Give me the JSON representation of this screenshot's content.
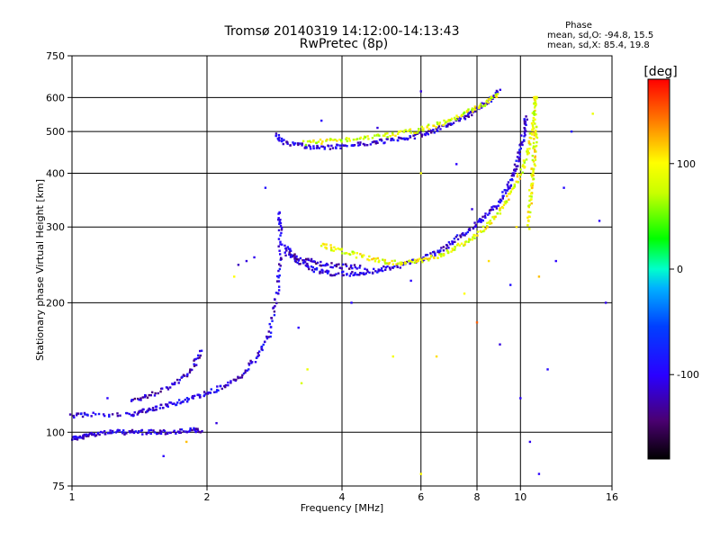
{
  "chart_data": {
    "type": "scatter",
    "title": "Tromsø 20140319 14:12:00-14:13:43",
    "subtitle": "RwPretec (8p)",
    "xlabel": "Frequency [MHz]",
    "ylabel": "Stationary phase Virtual Height [km]",
    "x_scale": "log",
    "y_scale": "log",
    "xlim": [
      1,
      16
    ],
    "ylim": [
      75,
      750
    ],
    "xticks": [
      1,
      2,
      4,
      6,
      8,
      10,
      16
    ],
    "yticks": [
      75,
      100,
      200,
      300,
      400,
      500,
      600,
      750
    ],
    "grid": true,
    "stats": {
      "heading": "Phase",
      "line_o": "mean, sd,O: -94.8, 15.5",
      "line_x": "mean, sd,X: 85.4, 19.8"
    },
    "colorbar": {
      "label": "[deg]",
      "range": [
        -180,
        180
      ],
      "ticks": [
        100,
        0,
        -100
      ]
    },
    "traces": [
      {
        "kind": "E-layer low",
        "phase": -110,
        "points": [
          [
            1.0,
            97
          ],
          [
            1.05,
            97
          ],
          [
            1.1,
            99
          ],
          [
            1.2,
            100
          ],
          [
            1.3,
            100
          ],
          [
            1.4,
            100
          ],
          [
            1.55,
            100
          ],
          [
            1.7,
            100
          ],
          [
            1.85,
            101
          ],
          [
            1.95,
            101
          ]
        ]
      },
      {
        "kind": "F1 O-mode rise",
        "phase": -105,
        "points": [
          [
            1.0,
            109
          ],
          [
            1.1,
            110
          ],
          [
            1.35,
            110
          ],
          [
            1.45,
            112
          ],
          [
            1.55,
            114
          ],
          [
            1.7,
            117
          ],
          [
            1.85,
            120
          ],
          [
            2.0,
            123
          ],
          [
            2.2,
            128
          ],
          [
            2.4,
            136
          ],
          [
            2.6,
            150
          ],
          [
            2.75,
            168
          ],
          [
            2.85,
            200
          ],
          [
            2.9,
            240
          ],
          [
            2.92,
            290
          ],
          [
            2.9,
            330
          ]
        ]
      },
      {
        "kind": "F1 upper branch",
        "phase": -115,
        "points": [
          [
            1.35,
            118
          ],
          [
            1.5,
            122
          ],
          [
            1.7,
            130
          ],
          [
            1.85,
            140
          ],
          [
            1.95,
            155
          ]
        ]
      },
      {
        "kind": "F2 O-mode trace",
        "phase": -105,
        "points": [
          [
            3.0,
            270
          ],
          [
            3.1,
            255
          ],
          [
            3.3,
            245
          ],
          [
            3.5,
            238
          ],
          [
            3.8,
            234
          ],
          [
            4.2,
            233
          ],
          [
            4.6,
            236
          ],
          [
            5.0,
            240
          ],
          [
            5.5,
            245
          ],
          [
            6.0,
            252
          ],
          [
            6.5,
            262
          ],
          [
            7.0,
            275
          ],
          [
            7.5,
            290
          ],
          [
            8.0,
            305
          ],
          [
            8.5,
            322
          ],
          [
            9.0,
            345
          ],
          [
            9.4,
            372
          ],
          [
            9.7,
            405
          ],
          [
            10.0,
            450
          ],
          [
            10.2,
            500
          ],
          [
            10.3,
            540
          ]
        ]
      },
      {
        "kind": "F2 echo band",
        "phase": -120,
        "points": [
          [
            3.0,
            260
          ],
          [
            3.3,
            252
          ],
          [
            3.6,
            246
          ],
          [
            4.0,
            243
          ],
          [
            4.5,
            242
          ]
        ]
      },
      {
        "kind": "F2 X-mode trace",
        "phase": 90,
        "points": [
          [
            3.6,
            272
          ],
          [
            3.9,
            266
          ],
          [
            4.3,
            258
          ],
          [
            4.8,
            251
          ],
          [
            5.3,
            248
          ],
          [
            5.8,
            249
          ],
          [
            6.4,
            255
          ],
          [
            7.0,
            265
          ],
          [
            7.6,
            278
          ],
          [
            8.2,
            295
          ],
          [
            8.8,
            318
          ],
          [
            9.3,
            345
          ],
          [
            9.8,
            380
          ],
          [
            10.2,
            425
          ],
          [
            10.5,
            475
          ],
          [
            10.7,
            530
          ],
          [
            10.8,
            580
          ],
          [
            10.8,
            610
          ]
        ]
      },
      {
        "kind": "F2 X-mode right",
        "phase": 95,
        "points": [
          [
            10.4,
            300
          ],
          [
            10.5,
            340
          ],
          [
            10.6,
            380
          ],
          [
            10.7,
            420
          ],
          [
            10.8,
            470
          ],
          [
            10.8,
            520
          ]
        ]
      },
      {
        "kind": "Multiple echo O",
        "phase": -110,
        "points": [
          [
            2.85,
            490
          ],
          [
            3.0,
            470
          ],
          [
            3.3,
            462
          ],
          [
            3.6,
            460
          ],
          [
            4.0,
            462
          ],
          [
            4.5,
            468
          ],
          [
            5.0,
            475
          ],
          [
            5.5,
            482
          ],
          [
            6.0,
            492
          ],
          [
            6.5,
            505
          ],
          [
            7.0,
            522
          ],
          [
            7.5,
            540
          ],
          [
            8.0,
            565
          ],
          [
            8.5,
            590
          ],
          [
            9.0,
            620
          ]
        ]
      },
      {
        "kind": "Multiple echo X",
        "phase": 85,
        "points": [
          [
            3.3,
            470
          ],
          [
            3.7,
            475
          ],
          [
            4.2,
            480
          ],
          [
            4.8,
            487
          ],
          [
            5.4,
            495
          ],
          [
            6.0,
            505
          ],
          [
            6.6,
            520
          ],
          [
            7.2,
            540
          ],
          [
            7.8,
            560
          ],
          [
            8.4,
            585
          ],
          [
            9.0,
            610
          ]
        ]
      }
    ],
    "scatter": [
      {
        "x": 2.35,
        "y": 245,
        "phase": -120
      },
      {
        "x": 2.45,
        "y": 250,
        "phase": -110
      },
      {
        "x": 2.55,
        "y": 255,
        "phase": -105
      },
      {
        "x": 2.3,
        "y": 230,
        "phase": 100
      },
      {
        "x": 3.25,
        "y": 130,
        "phase": 80
      },
      {
        "x": 3.35,
        "y": 140,
        "phase": 90
      },
      {
        "x": 3.2,
        "y": 175,
        "phase": -100
      },
      {
        "x": 1.2,
        "y": 120,
        "phase": -100
      },
      {
        "x": 1.8,
        "y": 95,
        "phase": 120
      },
      {
        "x": 2.7,
        "y": 370,
        "phase": -90
      },
      {
        "x": 6.0,
        "y": 620,
        "phase": -110
      },
      {
        "x": 6.0,
        "y": 400,
        "phase": 95
      },
      {
        "x": 7.2,
        "y": 420,
        "phase": -100
      },
      {
        "x": 7.5,
        "y": 210,
        "phase": 100
      },
      {
        "x": 8.0,
        "y": 180,
        "phase": 150
      },
      {
        "x": 9.0,
        "y": 160,
        "phase": -110
      },
      {
        "x": 10.0,
        "y": 120,
        "phase": -100
      },
      {
        "x": 11.5,
        "y": 140,
        "phase": -95
      },
      {
        "x": 12.0,
        "y": 250,
        "phase": -100
      },
      {
        "x": 13.0,
        "y": 500,
        "phase": -90
      },
      {
        "x": 14.5,
        "y": 550,
        "phase": 90
      },
      {
        "x": 15.0,
        "y": 310,
        "phase": -100
      },
      {
        "x": 15.5,
        "y": 200,
        "phase": -105
      },
      {
        "x": 11.0,
        "y": 230,
        "phase": 120
      },
      {
        "x": 11.0,
        "y": 80,
        "phase": -100
      },
      {
        "x": 10.5,
        "y": 95,
        "phase": -105
      },
      {
        "x": 6.0,
        "y": 80,
        "phase": 100
      },
      {
        "x": 6.5,
        "y": 150,
        "phase": 110
      },
      {
        "x": 4.2,
        "y": 200,
        "phase": -95
      },
      {
        "x": 5.2,
        "y": 150,
        "phase": 95
      },
      {
        "x": 1.6,
        "y": 88,
        "phase": -100
      },
      {
        "x": 2.1,
        "y": 105,
        "phase": -110
      },
      {
        "x": 5.7,
        "y": 225,
        "phase": -100
      },
      {
        "x": 9.5,
        "y": 220,
        "phase": -90
      },
      {
        "x": 8.5,
        "y": 250,
        "phase": 110
      },
      {
        "x": 7.8,
        "y": 330,
        "phase": -110
      },
      {
        "x": 12.5,
        "y": 370,
        "phase": -95
      },
      {
        "x": 3.6,
        "y": 530,
        "phase": -100
      },
      {
        "x": 4.8,
        "y": 510,
        "phase": -110
      },
      {
        "x": 9.8,
        "y": 300,
        "phase": 110
      }
    ]
  }
}
